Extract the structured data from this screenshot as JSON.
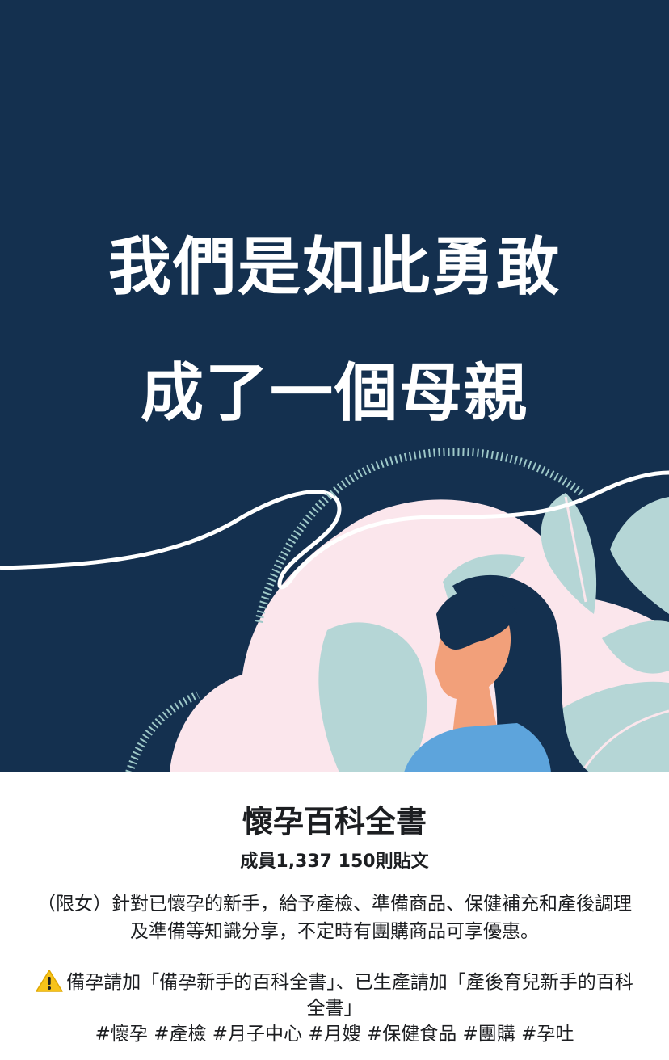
{
  "cover": {
    "line1": "我們是如此勇敢",
    "line2": "成了一個母親",
    "colors": {
      "background": "#14304f",
      "pink": "#fbe6ec",
      "leaf": "#b5d6d6",
      "skin": "#f2a07a",
      "shirt": "#5da4dc"
    }
  },
  "group": {
    "name": "懷孕百科全書",
    "members": "成員1,337",
    "posts": "150則貼文",
    "description": "（限女）針對已懷孕的新手，給予產檢、準備商品、保健補充和產後調理及準備等知識分享，不定時有團購商品可享優惠。",
    "notice_icon": "warning-icon",
    "notice": "備孕請加「備孕新手的百科全書」、已生產請加「產後育兒新手的百科全書」",
    "hashtags": "#懷孕 #產檢 #月子中心 #月嫂 #保健食品 #團購 #孕吐"
  }
}
